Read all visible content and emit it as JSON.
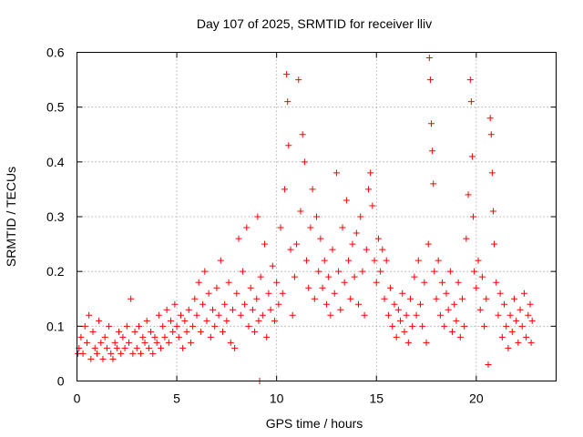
{
  "chart_data": {
    "type": "scatter",
    "title": "Day 107 of 2025, SRMTID for receiver lliv",
    "xlabel": "GPS time / hours",
    "ylabel": "SRMTID / TECUs",
    "xlim": [
      0,
      24
    ],
    "ylim": [
      0,
      0.6
    ],
    "x_ticks": [
      0,
      5,
      10,
      15,
      20
    ],
    "y_ticks": [
      0,
      0.1,
      0.2,
      0.3,
      0.4,
      0.5,
      0.6
    ],
    "x_tick_labels": [
      "0",
      "5",
      "10",
      "15",
      "20"
    ],
    "y_tick_labels": [
      "0",
      "0.1",
      "0.2",
      "0.3",
      "0.4",
      "0.5",
      "0.6"
    ],
    "grid": true,
    "marker": "+",
    "color": "#ff0000",
    "series": [
      {
        "name": "SRMTID",
        "points": [
          [
            0.05,
            0.05
          ],
          [
            0.1,
            0.06
          ],
          [
            0.2,
            0.08
          ],
          [
            0.3,
            0.05
          ],
          [
            0.4,
            0.1
          ],
          [
            0.5,
            0.07
          ],
          [
            0.6,
            0.12
          ],
          [
            0.7,
            0.04
          ],
          [
            0.8,
            0.09
          ],
          [
            0.9,
            0.06
          ],
          [
            1.0,
            0.05
          ],
          [
            1.1,
            0.11
          ],
          [
            1.2,
            0.07
          ],
          [
            1.3,
            0.04
          ],
          [
            1.4,
            0.08
          ],
          [
            1.5,
            0.06
          ],
          [
            1.6,
            0.1
          ],
          [
            1.7,
            0.05
          ],
          [
            1.8,
            0.04
          ],
          [
            1.9,
            0.07
          ],
          [
            2.0,
            0.06
          ],
          [
            2.1,
            0.09
          ],
          [
            2.2,
            0.05
          ],
          [
            2.3,
            0.08
          ],
          [
            2.4,
            0.06
          ],
          [
            2.5,
            0.1
          ],
          [
            2.6,
            0.07
          ],
          [
            2.7,
            0.15
          ],
          [
            2.8,
            0.05
          ],
          [
            2.9,
            0.09
          ],
          [
            3.0,
            0.06
          ],
          [
            3.1,
            0.1
          ],
          [
            3.2,
            0.05
          ],
          [
            3.3,
            0.08
          ],
          [
            3.4,
            0.07
          ],
          [
            3.5,
            0.11
          ],
          [
            3.6,
            0.06
          ],
          [
            3.7,
            0.09
          ],
          [
            3.8,
            0.05
          ],
          [
            3.9,
            0.08
          ],
          [
            4.0,
            0.07
          ],
          [
            4.1,
            0.12
          ],
          [
            4.2,
            0.06
          ],
          [
            4.3,
            0.1
          ],
          [
            4.4,
            0.08
          ],
          [
            4.5,
            0.13
          ],
          [
            4.6,
            0.07
          ],
          [
            4.7,
            0.11
          ],
          [
            4.8,
            0.09
          ],
          [
            4.9,
            0.14
          ],
          [
            5.0,
            0.1
          ],
          [
            5.1,
            0.08
          ],
          [
            5.2,
            0.12
          ],
          [
            5.3,
            0.06
          ],
          [
            5.4,
            0.11
          ],
          [
            5.5,
            0.09
          ],
          [
            5.6,
            0.13
          ],
          [
            5.7,
            0.07
          ],
          [
            5.8,
            0.1
          ],
          [
            5.9,
            0.15
          ],
          [
            6.0,
            0.12
          ],
          [
            6.1,
            0.18
          ],
          [
            6.2,
            0.09
          ],
          [
            6.3,
            0.14
          ],
          [
            6.4,
            0.2
          ],
          [
            6.5,
            0.11
          ],
          [
            6.6,
            0.16
          ],
          [
            6.7,
            0.08
          ],
          [
            6.8,
            0.13
          ],
          [
            6.9,
            0.1
          ],
          [
            7.0,
            0.17
          ],
          [
            7.1,
            0.12
          ],
          [
            7.2,
            0.22
          ],
          [
            7.3,
            0.09
          ],
          [
            7.4,
            0.14
          ],
          [
            7.5,
            0.11
          ],
          [
            7.6,
            0.18
          ],
          [
            7.7,
            0.07
          ],
          [
            7.8,
            0.13
          ],
          [
            7.9,
            0.06
          ],
          [
            8.0,
            0.16
          ],
          [
            8.1,
            0.26
          ],
          [
            8.2,
            0.12
          ],
          [
            8.3,
            0.2
          ],
          [
            8.4,
            0.14
          ],
          [
            8.5,
            0.28
          ],
          [
            8.6,
            0.1
          ],
          [
            8.7,
            0.17
          ],
          [
            8.8,
            0.13
          ],
          [
            8.9,
            0.09
          ],
          [
            9.0,
            0.15
          ],
          [
            9.05,
            0.3
          ],
          [
            9.1,
            0.11
          ],
          [
            9.15,
            0.0
          ],
          [
            9.2,
            0.19
          ],
          [
            9.3,
            0.12
          ],
          [
            9.4,
            0.25
          ],
          [
            9.5,
            0.08
          ],
          [
            9.6,
            0.16
          ],
          [
            9.7,
            0.13
          ],
          [
            9.8,
            0.21
          ],
          [
            9.9,
            0.11
          ],
          [
            10.0,
            0.18
          ],
          [
            10.1,
            0.14
          ],
          [
            10.2,
            0.28
          ],
          [
            10.3,
            0.16
          ],
          [
            10.4,
            0.35
          ],
          [
            10.5,
            0.56
          ],
          [
            10.55,
            0.51
          ],
          [
            10.6,
            0.43
          ],
          [
            10.7,
            0.24
          ],
          [
            10.8,
            0.12
          ],
          [
            10.9,
            0.19
          ],
          [
            11.0,
            0.25
          ],
          [
            11.1,
            0.55
          ],
          [
            11.2,
            0.31
          ],
          [
            11.3,
            0.45
          ],
          [
            11.4,
            0.4
          ],
          [
            11.5,
            0.22
          ],
          [
            11.6,
            0.17
          ],
          [
            11.7,
            0.28
          ],
          [
            11.8,
            0.35
          ],
          [
            11.9,
            0.15
          ],
          [
            12.0,
            0.3
          ],
          [
            12.1,
            0.2
          ],
          [
            12.2,
            0.26
          ],
          [
            12.3,
            0.17
          ],
          [
            12.4,
            0.22
          ],
          [
            12.5,
            0.14
          ],
          [
            12.6,
            0.19
          ],
          [
            12.7,
            0.12
          ],
          [
            12.8,
            0.24
          ],
          [
            12.9,
            0.16
          ],
          [
            13.0,
            0.38
          ],
          [
            13.1,
            0.2
          ],
          [
            13.2,
            0.13
          ],
          [
            13.3,
            0.28
          ],
          [
            13.4,
            0.18
          ],
          [
            13.5,
            0.33
          ],
          [
            13.6,
            0.22
          ],
          [
            13.7,
            0.15
          ],
          [
            13.8,
            0.25
          ],
          [
            13.9,
            0.19
          ],
          [
            14.0,
            0.27
          ],
          [
            14.1,
            0.14
          ],
          [
            14.2,
            0.3
          ],
          [
            14.3,
            0.2
          ],
          [
            14.4,
            0.12
          ],
          [
            14.5,
            0.24
          ],
          [
            14.6,
            0.35
          ],
          [
            14.7,
            0.38
          ],
          [
            14.8,
            0.32
          ],
          [
            14.9,
            0.22
          ],
          [
            15.0,
            0.18
          ],
          [
            15.1,
            0.26
          ],
          [
            15.2,
            0.2
          ],
          [
            15.3,
            0.24
          ],
          [
            15.4,
            0.15
          ],
          [
            15.5,
            0.22
          ],
          [
            15.6,
            0.12
          ],
          [
            15.7,
            0.17
          ],
          [
            15.8,
            0.1
          ],
          [
            15.9,
            0.14
          ],
          [
            16.0,
            0.08
          ],
          [
            16.1,
            0.13
          ],
          [
            16.2,
            0.11
          ],
          [
            16.3,
            0.16
          ],
          [
            16.4,
            0.09
          ],
          [
            16.5,
            0.12
          ],
          [
            16.6,
            0.07
          ],
          [
            16.7,
            0.15
          ],
          [
            16.8,
            0.1
          ],
          [
            16.9,
            0.19
          ],
          [
            17.0,
            0.12
          ],
          [
            17.1,
            0.22
          ],
          [
            17.2,
            0.14
          ],
          [
            17.3,
            0.1
          ],
          [
            17.4,
            0.18
          ],
          [
            17.5,
            0.07
          ],
          [
            17.6,
            0.25
          ],
          [
            17.65,
            0.59
          ],
          [
            17.7,
            0.55
          ],
          [
            17.75,
            0.47
          ],
          [
            17.8,
            0.42
          ],
          [
            17.85,
            0.36
          ],
          [
            17.9,
            0.2
          ],
          [
            18.0,
            0.15
          ],
          [
            18.1,
            0.22
          ],
          [
            18.2,
            0.12
          ],
          [
            18.3,
            0.18
          ],
          [
            18.4,
            0.1
          ],
          [
            18.5,
            0.16
          ],
          [
            18.6,
            0.13
          ],
          [
            18.7,
            0.2
          ],
          [
            18.8,
            0.09
          ],
          [
            18.9,
            0.14
          ],
          [
            19.0,
            0.11
          ],
          [
            19.1,
            0.18
          ],
          [
            19.2,
            0.08
          ],
          [
            19.3,
            0.15
          ],
          [
            19.4,
            0.1
          ],
          [
            19.5,
            0.26
          ],
          [
            19.6,
            0.34
          ],
          [
            19.7,
            0.55
          ],
          [
            19.75,
            0.51
          ],
          [
            19.8,
            0.41
          ],
          [
            19.85,
            0.3
          ],
          [
            19.9,
            0.2
          ],
          [
            20.0,
            0.17
          ],
          [
            20.1,
            0.22
          ],
          [
            20.2,
            0.13
          ],
          [
            20.3,
            0.19
          ],
          [
            20.4,
            0.1
          ],
          [
            20.5,
            0.15
          ],
          [
            20.6,
            0.03
          ],
          [
            20.7,
            0.48
          ],
          [
            20.75,
            0.45
          ],
          [
            20.8,
            0.38
          ],
          [
            20.85,
            0.31
          ],
          [
            20.9,
            0.25
          ],
          [
            21.0,
            0.18
          ],
          [
            21.1,
            0.12
          ],
          [
            21.2,
            0.16
          ],
          [
            21.3,
            0.08
          ],
          [
            21.4,
            0.14
          ],
          [
            21.5,
            0.1
          ],
          [
            21.6,
            0.06
          ],
          [
            21.7,
            0.12
          ],
          [
            21.8,
            0.09
          ],
          [
            21.9,
            0.15
          ],
          [
            22.0,
            0.11
          ],
          [
            22.1,
            0.07
          ],
          [
            22.2,
            0.13
          ],
          [
            22.3,
            0.1
          ],
          [
            22.4,
            0.16
          ],
          [
            22.5,
            0.08
          ],
          [
            22.6,
            0.12
          ],
          [
            22.7,
            0.14
          ],
          [
            22.75,
            0.07
          ],
          [
            22.8,
            0.11
          ]
        ]
      }
    ]
  }
}
